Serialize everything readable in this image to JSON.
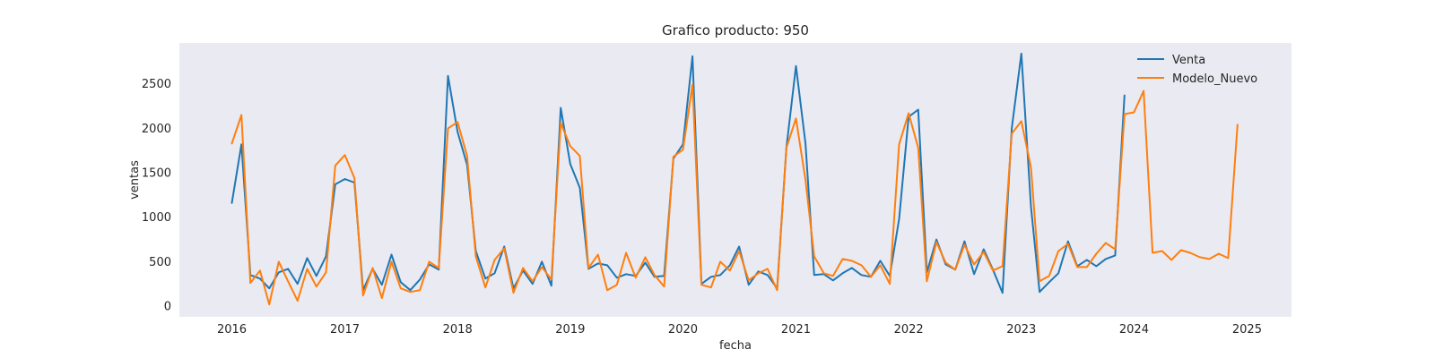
{
  "chart_data": {
    "type": "line",
    "title": "Grafico producto: 950",
    "xlabel": "fecha",
    "ylabel": "ventas",
    "xlim": [
      "2015-07-15",
      "2025-05-25"
    ],
    "ylim": [
      -120,
      2960
    ],
    "x_ticks": [
      "2016",
      "2017",
      "2018",
      "2019",
      "2020",
      "2021",
      "2022",
      "2023",
      "2024",
      "2025"
    ],
    "y_ticks": [
      0,
      500,
      1000,
      1500,
      2000,
      2500
    ],
    "grid": false,
    "legend": "top-right",
    "background": "#eaeaf2",
    "series": [
      {
        "name": "Venta",
        "color": "#1f77b4",
        "x": [
          "2016-01",
          "2016-02",
          "2016-03",
          "2016-04",
          "2016-05",
          "2016-06",
          "2016-07",
          "2016-08",
          "2016-09",
          "2016-10",
          "2016-11",
          "2016-12",
          "2017-01",
          "2017-02",
          "2017-03",
          "2017-04",
          "2017-05",
          "2017-06",
          "2017-07",
          "2017-08",
          "2017-09",
          "2017-10",
          "2017-11",
          "2017-12",
          "2018-01",
          "2018-02",
          "2018-03",
          "2018-04",
          "2018-05",
          "2018-06",
          "2018-07",
          "2018-08",
          "2018-09",
          "2018-10",
          "2018-11",
          "2018-12",
          "2019-01",
          "2019-02",
          "2019-03",
          "2019-04",
          "2019-05",
          "2019-06",
          "2019-07",
          "2019-08",
          "2019-09",
          "2019-10",
          "2019-11",
          "2019-12",
          "2020-01",
          "2020-02",
          "2020-03",
          "2020-04",
          "2020-05",
          "2020-06",
          "2020-07",
          "2020-08",
          "2020-09",
          "2020-10",
          "2020-11",
          "2020-12",
          "2021-01",
          "2021-02",
          "2021-03",
          "2021-04",
          "2021-05",
          "2021-06",
          "2021-07",
          "2021-08",
          "2021-09",
          "2021-10",
          "2021-11",
          "2021-12",
          "2022-01",
          "2022-02",
          "2022-03",
          "2022-04",
          "2022-05",
          "2022-06",
          "2022-07",
          "2022-08",
          "2022-09",
          "2022-10",
          "2022-11",
          "2022-12",
          "2023-01",
          "2023-02",
          "2023-03",
          "2023-04",
          "2023-05",
          "2023-06",
          "2023-07",
          "2023-08",
          "2023-09",
          "2023-10",
          "2023-11",
          "2023-12"
        ],
        "values": [
          1160,
          1820,
          350,
          310,
          200,
          380,
          420,
          250,
          540,
          340,
          560,
          1370,
          1430,
          1390,
          180,
          420,
          240,
          580,
          270,
          180,
          300,
          470,
          410,
          2590,
          1960,
          1590,
          620,
          310,
          370,
          670,
          200,
          400,
          250,
          500,
          230,
          2230,
          1600,
          1330,
          420,
          480,
          460,
          320,
          360,
          340,
          490,
          330,
          340,
          1660,
          1820,
          2810,
          250,
          330,
          350,
          460,
          670,
          240,
          390,
          350,
          200,
          1780,
          2700,
          1830,
          350,
          360,
          290,
          370,
          430,
          350,
          330,
          510,
          340,
          980,
          2130,
          2210,
          380,
          750,
          470,
          410,
          730,
          360,
          640,
          410,
          150,
          2000,
          2840,
          1120,
          160,
          270,
          370,
          730,
          450,
          520,
          450,
          530,
          570,
          2370
        ]
      },
      {
        "name": "Modelo_Nuevo",
        "color": "#ff7f0e",
        "x": [
          "2016-01",
          "2016-02",
          "2016-03",
          "2016-04",
          "2016-05",
          "2016-06",
          "2016-07",
          "2016-08",
          "2016-09",
          "2016-10",
          "2016-11",
          "2016-12",
          "2017-01",
          "2017-02",
          "2017-03",
          "2017-04",
          "2017-05",
          "2017-06",
          "2017-07",
          "2017-08",
          "2017-09",
          "2017-10",
          "2017-11",
          "2017-12",
          "2018-01",
          "2018-02",
          "2018-03",
          "2018-04",
          "2018-05",
          "2018-06",
          "2018-07",
          "2018-08",
          "2018-09",
          "2018-10",
          "2018-11",
          "2018-12",
          "2019-01",
          "2019-02",
          "2019-03",
          "2019-04",
          "2019-05",
          "2019-06",
          "2019-07",
          "2019-08",
          "2019-09",
          "2019-10",
          "2019-11",
          "2019-12",
          "2020-01",
          "2020-02",
          "2020-03",
          "2020-04",
          "2020-05",
          "2020-06",
          "2020-07",
          "2020-08",
          "2020-09",
          "2020-10",
          "2020-11",
          "2020-12",
          "2021-01",
          "2021-02",
          "2021-03",
          "2021-04",
          "2021-05",
          "2021-06",
          "2021-07",
          "2021-08",
          "2021-09",
          "2021-10",
          "2021-11",
          "2021-12",
          "2022-01",
          "2022-02",
          "2022-03",
          "2022-04",
          "2022-05",
          "2022-06",
          "2022-07",
          "2022-08",
          "2022-09",
          "2022-10",
          "2022-11",
          "2022-12",
          "2023-01",
          "2023-02",
          "2023-03",
          "2023-04",
          "2023-05",
          "2023-06",
          "2023-07",
          "2023-08",
          "2023-09",
          "2023-10",
          "2023-11",
          "2023-12",
          "2024-01",
          "2024-02",
          "2024-03",
          "2024-04",
          "2024-05",
          "2024-06",
          "2024-07",
          "2024-08",
          "2024-09",
          "2024-10",
          "2024-11",
          "2024-12"
        ],
        "values": [
          1830,
          2150,
          260,
          400,
          20,
          500,
          280,
          60,
          420,
          220,
          380,
          1580,
          1700,
          1440,
          120,
          430,
          90,
          500,
          200,
          160,
          180,
          500,
          430,
          2000,
          2070,
          1690,
          560,
          210,
          520,
          650,
          150,
          430,
          280,
          440,
          300,
          2060,
          1800,
          1690,
          430,
          580,
          180,
          240,
          600,
          320,
          550,
          350,
          220,
          1680,
          1760,
          2490,
          240,
          210,
          500,
          400,
          620,
          290,
          370,
          420,
          180,
          1780,
          2110,
          1420,
          560,
          370,
          340,
          530,
          510,
          460,
          330,
          460,
          250,
          1820,
          2170,
          1780,
          280,
          720,
          490,
          410,
          690,
          470,
          610,
          400,
          450,
          1940,
          2080,
          1560,
          280,
          340,
          620,
          700,
          440,
          440,
          590,
          710,
          640,
          2160,
          2180,
          2420,
          600,
          620,
          520,
          630,
          600,
          550,
          530,
          590,
          540,
          2040
        ]
      }
    ]
  }
}
